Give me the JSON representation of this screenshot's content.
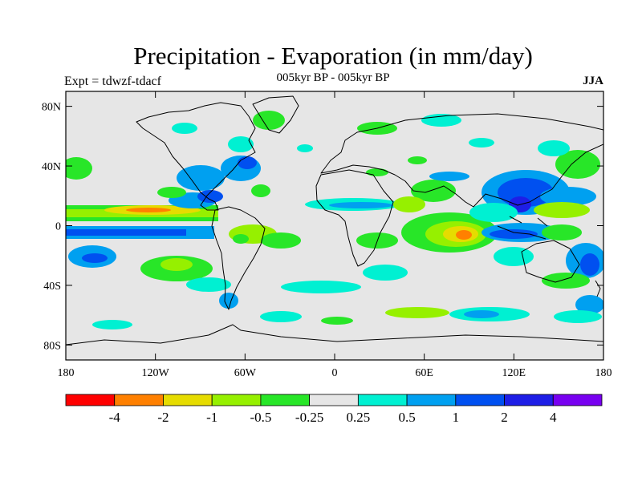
{
  "header": {
    "title": "Precipitation - Evaporation (in mm/day)",
    "subtitle": "005kyr BP - 005kyr BP",
    "left_label": "Expt = tdwzf-tdacf",
    "right_label": "JJA"
  },
  "map": {
    "projection": "equirectangular",
    "lon_range": [
      -180,
      180
    ],
    "lat_range": [
      -90,
      90
    ],
    "lat_ticks": [
      {
        "value": 80,
        "label": "80N"
      },
      {
        "value": 40,
        "label": "40N"
      },
      {
        "value": 0,
        "label": "0"
      },
      {
        "value": -40,
        "label": "40S"
      },
      {
        "value": -80,
        "label": "80S"
      }
    ],
    "lon_ticks": [
      {
        "value": -180,
        "label": "180"
      },
      {
        "value": -120,
        "label": "120W"
      },
      {
        "value": -60,
        "label": "60W"
      },
      {
        "value": 0,
        "label": "0"
      },
      {
        "value": 60,
        "label": "60E"
      },
      {
        "value": 120,
        "label": "120E"
      },
      {
        "value": 180,
        "label": "180"
      }
    ],
    "background_color": "#e6e6e6"
  },
  "colorbar": {
    "colors": [
      "#ff0000",
      "#ff8000",
      "#e6dc00",
      "#96f000",
      "#28e628",
      "#e6e6e6",
      "#00f0d2",
      "#00a0f0",
      "#0050f0",
      "#1e1ee6",
      "#7800f0"
    ],
    "labels": [
      "-4",
      "-2",
      "-1",
      "-0.5",
      "-0.25",
      "0.25",
      "0.5",
      "1",
      "2",
      "4"
    ]
  }
}
